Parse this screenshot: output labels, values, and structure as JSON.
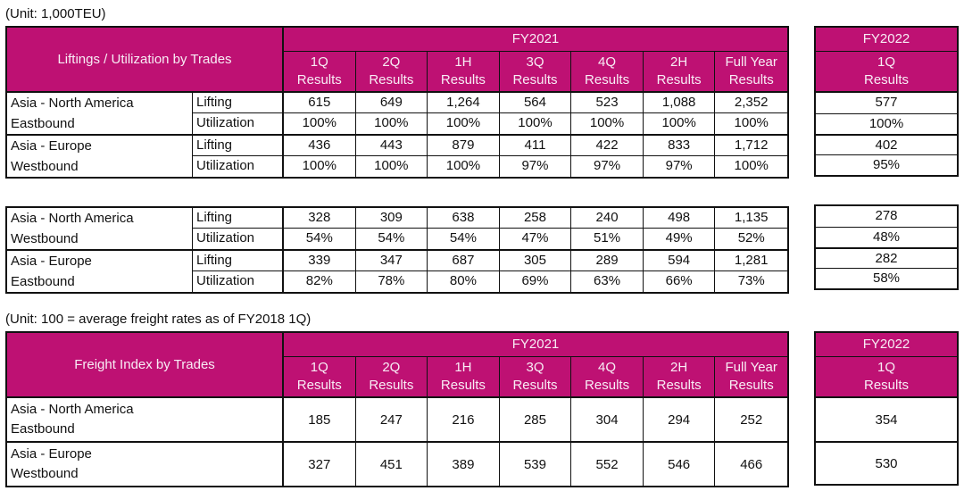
{
  "colors": {
    "accent": "#BE1173",
    "header_text": "#F8EDF5",
    "border": "#111111"
  },
  "labels": {
    "fy2021": "FY2021",
    "fy2022": "FY2022",
    "results": "Results",
    "fy2022_quarter": "1Q",
    "quarters": [
      "1Q",
      "2Q",
      "1H",
      "3Q",
      "4Q",
      "2H",
      "Full Year"
    ]
  },
  "liftings": {
    "unit": "(Unit: 1,000TEU)",
    "title": "Liftings / Utilization by Trades",
    "block1": {
      "groups": [
        {
          "trade": [
            "Asia - North America",
            "Eastbound"
          ],
          "rows": [
            {
              "label": "Lifting",
              "values": [
                "615",
                "649",
                "1,264",
                "564",
                "523",
                "1,088",
                "2,352"
              ],
              "fy2022": "577"
            },
            {
              "label": "Utilization",
              "values": [
                "100%",
                "100%",
                "100%",
                "100%",
                "100%",
                "100%",
                "100%"
              ],
              "fy2022": "100%"
            }
          ]
        },
        {
          "trade": [
            "Asia - Europe",
            "Westbound"
          ],
          "rows": [
            {
              "label": "Lifting",
              "values": [
                "436",
                "443",
                "879",
                "411",
                "422",
                "833",
                "1,712"
              ],
              "fy2022": "402"
            },
            {
              "label": "Utilization",
              "values": [
                "100%",
                "100%",
                "100%",
                "97%",
                "97%",
                "97%",
                "100%"
              ],
              "fy2022": "95%"
            }
          ]
        }
      ]
    },
    "block2": {
      "groups": [
        {
          "trade": [
            "Asia - North America",
            "Westbound"
          ],
          "rows": [
            {
              "label": "Lifting",
              "values": [
                "328",
                "309",
                "638",
                "258",
                "240",
                "498",
                "1,135"
              ],
              "fy2022": "278"
            },
            {
              "label": "Utilization",
              "values": [
                "54%",
                "54%",
                "54%",
                "47%",
                "51%",
                "49%",
                "52%"
              ],
              "fy2022": "48%"
            }
          ]
        },
        {
          "trade": [
            "Asia - Europe",
            "Eastbound"
          ],
          "rows": [
            {
              "label": "Lifting",
              "values": [
                "339",
                "347",
                "687",
                "305",
                "289",
                "594",
                "1,281"
              ],
              "fy2022": "282"
            },
            {
              "label": "Utilization",
              "values": [
                "82%",
                "78%",
                "80%",
                "69%",
                "63%",
                "66%",
                "73%"
              ],
              "fy2022": "58%"
            }
          ]
        }
      ]
    }
  },
  "freight": {
    "unit": "(Unit: 100 = average freight rates as of FY2018 1Q)",
    "title": "Freight Index by Trades",
    "rows": [
      {
        "trade": [
          "Asia - North America",
          "Eastbound"
        ],
        "values": [
          "185",
          "247",
          "216",
          "285",
          "304",
          "294",
          "252"
        ],
        "fy2022": "354"
      },
      {
        "trade": [
          "Asia - Europe",
          "Westbound"
        ],
        "values": [
          "327",
          "451",
          "389",
          "539",
          "552",
          "546",
          "466"
        ],
        "fy2022": "530"
      }
    ]
  }
}
